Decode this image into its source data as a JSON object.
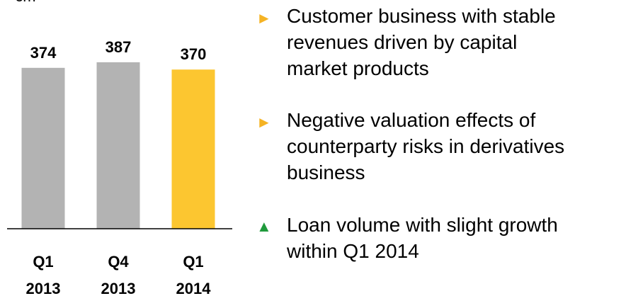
{
  "chart_data": {
    "type": "bar",
    "unit_label": "€m",
    "categories": [
      "Q1 2013",
      "Q4 2013",
      "Q1 2014"
    ],
    "values": [
      374,
      387,
      370
    ],
    "colors": [
      "#b3b3b3",
      "#b3b3b3",
      "#fcc630"
    ],
    "ylim": [
      0,
      400
    ]
  },
  "bullets": [
    {
      "marker": "►",
      "color": "#f5b324",
      "lines": [
        "Customer business with stable",
        "revenues driven by capital",
        "market products"
      ]
    },
    {
      "marker": "►",
      "color": "#f5b324",
      "lines": [
        "Negative valuation effects of",
        "counterparty risks in derivatives",
        "business"
      ]
    },
    {
      "marker": "▲",
      "color": "#1f9a3c",
      "lines": [
        "Loan volume with slight growth",
        "within Q1 2014"
      ]
    }
  ]
}
